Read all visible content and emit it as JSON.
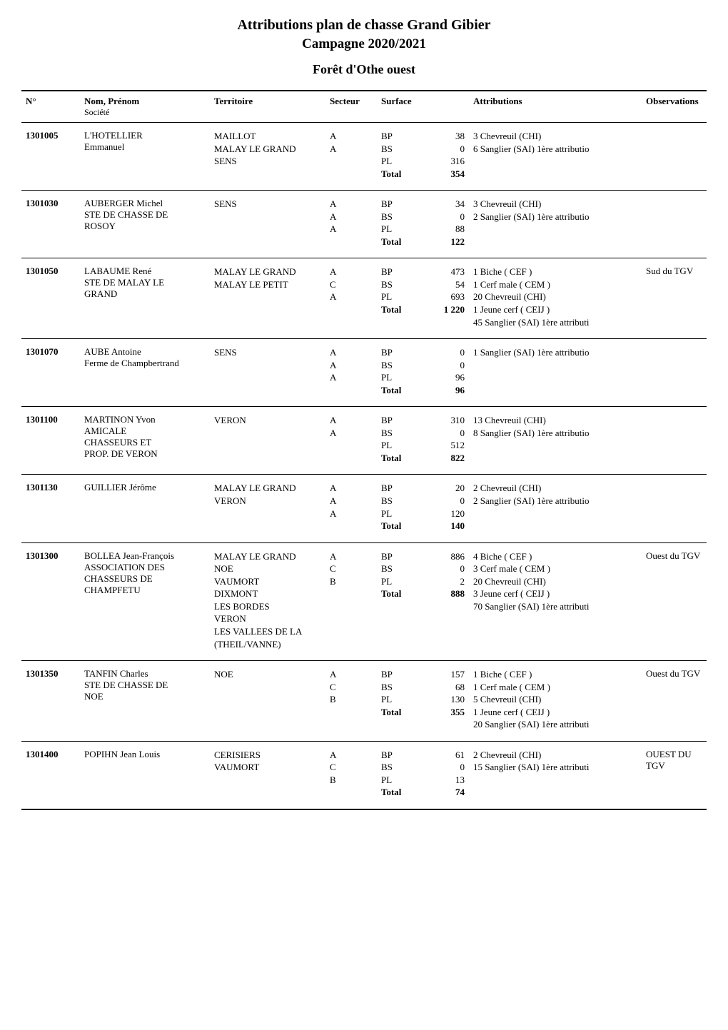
{
  "titles": {
    "main": "Attributions plan de chasse Grand Gibier",
    "campaign": "Campagne 2020/2021",
    "forest": "Forêt d'Othe ouest"
  },
  "headers": {
    "num": "N°",
    "nom": "Nom, Prénom",
    "nom_sub": "Société",
    "territoire": "Territoire",
    "secteur": "Secteur",
    "surface": "Surface",
    "attributions": "Attributions",
    "observations": "Observations"
  },
  "surface_labels": {
    "bp": "BP",
    "bs": "BS",
    "pl": "PL",
    "total": "Total"
  },
  "entries": [
    {
      "num": "1301005",
      "nom": [
        "L'HOTELLIER",
        "Emmanuel"
      ],
      "territoires": [
        "MAILLOT",
        "MALAY LE GRAND",
        "SENS"
      ],
      "secteurs": [
        "A",
        "A"
      ],
      "surface": {
        "bp": "38",
        "bs": "0",
        "pl": "316",
        "total": "354"
      },
      "attributions": [
        "3 Chevreuil (CHI)",
        "6 Sanglier (SAI) 1ère attributio"
      ],
      "obs": ""
    },
    {
      "num": "1301030",
      "nom": [
        "AUBERGER Michel",
        "STE DE CHASSE DE",
        "ROSOY"
      ],
      "territoires": [
        "SENS"
      ],
      "secteurs": [
        "A",
        "A",
        "A"
      ],
      "surface": {
        "bp": "34",
        "bs": "0",
        "pl": "88",
        "total": "122"
      },
      "attributions": [
        "3 Chevreuil (CHI)",
        "2 Sanglier (SAI) 1ère attributio"
      ],
      "obs": ""
    },
    {
      "num": "1301050",
      "nom": [
        "LABAUME René",
        "STE DE MALAY LE",
        "GRAND"
      ],
      "territoires": [
        "MALAY LE GRAND",
        "MALAY LE PETIT"
      ],
      "secteurs": [
        "A",
        "C",
        "A"
      ],
      "surface": {
        "bp": "473",
        "bs": "54",
        "pl": "693",
        "total": "1 220"
      },
      "attributions": [
        "1 Biche ( CEF )",
        "1 Cerf male ( CEM )",
        "20 Chevreuil (CHI)",
        "1 Jeune cerf ( CEIJ )",
        "45 Sanglier (SAI) 1ère attributi"
      ],
      "obs": "Sud du TGV"
    },
    {
      "num": "1301070",
      "nom": [
        "AUBE Antoine",
        "Ferme de Champbertrand"
      ],
      "territoires": [
        "SENS"
      ],
      "secteurs": [
        "A",
        "A",
        "A"
      ],
      "surface": {
        "bp": "0",
        "bs": "0",
        "pl": "96",
        "total": "96"
      },
      "attributions": [
        "1 Sanglier (SAI) 1ère attributio"
      ],
      "obs": ""
    },
    {
      "num": "1301100",
      "nom": [
        "MARTINON Yvon",
        "AMICALE",
        "CHASSEURS ET",
        "PROP. DE VERON"
      ],
      "territoires": [
        "VERON"
      ],
      "secteurs": [
        "A",
        "A"
      ],
      "surface": {
        "bp": "310",
        "bs": "0",
        "pl": "512",
        "total": "822"
      },
      "attributions": [
        "13 Chevreuil (CHI)",
        "8 Sanglier (SAI) 1ère attributio"
      ],
      "obs": ""
    },
    {
      "num": "1301130",
      "nom": [
        "GUILLIER Jérôme"
      ],
      "territoires": [
        "MALAY LE GRAND",
        "VERON"
      ],
      "secteurs": [
        "A",
        "A",
        "A"
      ],
      "surface": {
        "bp": "20",
        "bs": "0",
        "pl": "120",
        "total": "140"
      },
      "attributions": [
        "2 Chevreuil (CHI)",
        "2 Sanglier (SAI) 1ère attributio"
      ],
      "obs": ""
    },
    {
      "num": "1301300",
      "nom": [
        "BOLLEA Jean-François",
        "ASSOCIATION DES",
        "CHASSEURS DE",
        "CHAMPFETU"
      ],
      "territoires": [
        "MALAY LE GRAND",
        "NOE",
        "VAUMORT",
        "DIXMONT",
        "LES BORDES",
        "VERON",
        "LES VALLEES DE LA",
        "(THEIL/VANNE)"
      ],
      "secteurs": [
        "A",
        "C",
        "B"
      ],
      "surface": {
        "bp": "886",
        "bs": "0",
        "pl": "2",
        "total": "888"
      },
      "attributions": [
        "4 Biche ( CEF )",
        "3 Cerf male ( CEM )",
        "20 Chevreuil (CHI)",
        "3 Jeune cerf ( CEIJ )",
        "70 Sanglier (SAI) 1ère attributi"
      ],
      "obs": "Ouest du TGV"
    },
    {
      "num": "1301350",
      "nom": [
        "TANFIN Charles",
        "STE DE CHASSE DE",
        "NOE"
      ],
      "territoires": [
        "NOE"
      ],
      "secteurs": [
        "A",
        "C",
        "B"
      ],
      "surface": {
        "bp": "157",
        "bs": "68",
        "pl": "130",
        "total": "355"
      },
      "attributions": [
        "1 Biche ( CEF )",
        "1 Cerf male ( CEM )",
        "5 Chevreuil (CHI)",
        "1 Jeune cerf ( CEIJ )",
        "20 Sanglier (SAI) 1ère attributi"
      ],
      "obs": "Ouest du TGV"
    },
    {
      "num": "1301400",
      "nom": [
        "POPIHN Jean Louis"
      ],
      "territoires": [
        "CERISIERS",
        "VAUMORT"
      ],
      "secteurs": [
        "A",
        "C",
        "B"
      ],
      "surface": {
        "bp": "61",
        "bs": "0",
        "pl": "13",
        "total": "74"
      },
      "attributions": [
        "2 Chevreuil (CHI)",
        "15 Sanglier (SAI) 1ère attributi"
      ],
      "obs": "OUEST DU TGV"
    }
  ]
}
